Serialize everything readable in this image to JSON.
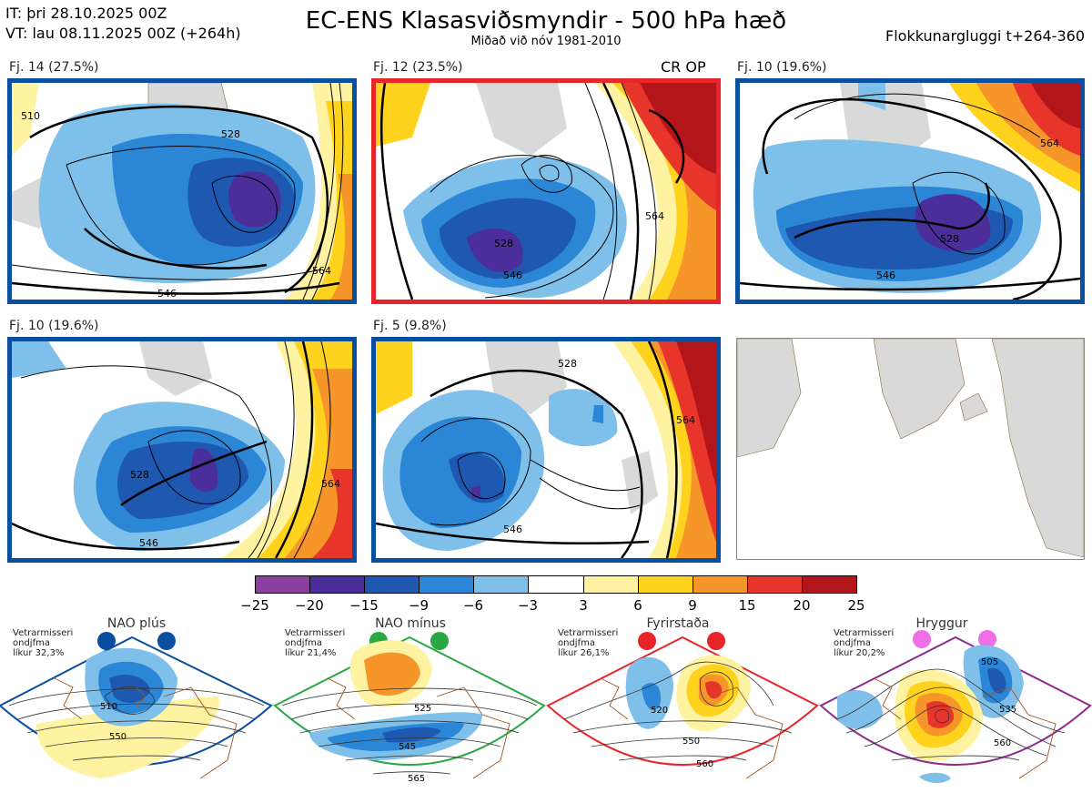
{
  "header": {
    "it_line": "IT: þri 28.10.2025 00Z",
    "vt_line": "VT: lau 08.11.2025 00Z  (+264h)",
    "title": "EC-ENS Klasasviðsmyndir - 500 hPa hæð",
    "subtitle": "Miðað við nóv 1981-2010",
    "window": "Flokkunargluggi t+264-360"
  },
  "clusters": [
    {
      "label": "Fj. 14 (27.5%)",
      "frame": "#0a4ea0",
      "contours": [
        "528",
        "546",
        "564",
        "510"
      ]
    },
    {
      "label": "Fj. 12 (23.5%)",
      "frame": "#e8262a",
      "badge": "CR OP",
      "contours": [
        "528",
        "546",
        "564"
      ]
    },
    {
      "label": "Fj. 10 (19.6%)",
      "frame": "#0a4ea0",
      "contours": [
        "528",
        "546",
        "564"
      ]
    },
    {
      "label": "Fj. 10 (19.6%)",
      "frame": "#0a4ea0",
      "contours": [
        "528",
        "546",
        "564"
      ]
    },
    {
      "label": "Fj. 5 (9.8%)",
      "frame": "#0a4ea0",
      "contours": [
        "528",
        "546",
        "564"
      ]
    }
  ],
  "colorbar": {
    "ticks": [
      "−25",
      "−20",
      "−15",
      "−9",
      "−6",
      "−3",
      "3",
      "6",
      "9",
      "15",
      "20",
      "25"
    ],
    "colors": [
      "#8a3f9e",
      "#4b2e9a",
      "#1f58b0",
      "#2b86d6",
      "#7fc0ea",
      "#ffffff",
      "#fff2a0",
      "#ffd21e",
      "#f5952a",
      "#e8352c",
      "#b3161a"
    ]
  },
  "regimes": [
    {
      "name": "NAO plús",
      "note": [
        "Vetrarmisseri",
        "ondjfma",
        "líkur 32,3%"
      ],
      "color": "#0a4ea0",
      "contours": [
        "510",
        "550"
      ]
    },
    {
      "name": "NAO mínus",
      "note": [
        "Vetrarmisseri",
        "ondjfma",
        "líkur 21,4%"
      ],
      "color": "#2aa844",
      "contours": [
        "525",
        "545",
        "565"
      ]
    },
    {
      "name": "Fyrirstaða",
      "note": [
        "Vetrarmisseri",
        "ondjfma",
        "líkur 26,1%"
      ],
      "color": "#e8262a",
      "contours": [
        "520",
        "550",
        "560"
      ]
    },
    {
      "name": "Hryggur",
      "note": [
        "Vetrarmisseri",
        "ondjfma",
        "líkur 20,2%"
      ],
      "color": "#8e2b8e",
      "contours": [
        "505",
        "535",
        "560"
      ]
    }
  ]
}
